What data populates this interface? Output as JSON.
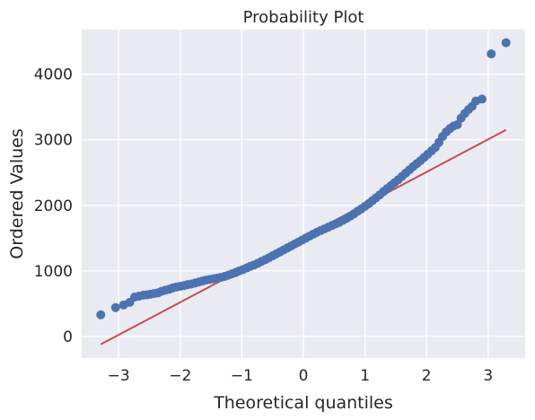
{
  "chart_data": {
    "type": "scatter",
    "title": "Probability Plot",
    "xlabel": "Theoretical quantiles",
    "ylabel": "Ordered Values",
    "xlim": [
      -3.6,
      3.6
    ],
    "ylim": [
      -330,
      4680
    ],
    "xticks": [
      -3,
      -2,
      -1,
      0,
      1,
      2,
      3
    ],
    "xtick_labels": [
      "−3",
      "−2",
      "−1",
      "0",
      "1",
      "2",
      "3"
    ],
    "yticks": [
      0,
      1000,
      2000,
      3000,
      4000
    ],
    "ytick_labels": [
      "0",
      "1000",
      "2000",
      "3000",
      "4000"
    ],
    "grid": true,
    "legend": "none",
    "series": [
      {
        "kind": "points",
        "color": "#4c72b0",
        "points": [
          [
            -3.29,
            330
          ],
          [
            -3.05,
            440
          ],
          [
            -2.92,
            480
          ],
          [
            -2.82,
            520
          ],
          [
            -2.74,
            600
          ],
          [
            -2.67,
            615
          ],
          [
            -2.6,
            630
          ],
          [
            -2.54,
            635
          ],
          [
            -2.48,
            645
          ],
          [
            -2.42,
            655
          ],
          [
            -2.36,
            665
          ],
          [
            -2.3,
            690
          ],
          [
            -2.24,
            705
          ],
          [
            -2.18,
            720
          ],
          [
            -2.12,
            740
          ],
          [
            -2.06,
            755
          ],
          [
            -2.0,
            765
          ],
          [
            -1.94,
            775
          ],
          [
            -1.88,
            790
          ],
          [
            -1.82,
            800
          ],
          [
            -1.76,
            815
          ],
          [
            -1.7,
            830
          ],
          [
            -1.64,
            845
          ],
          [
            -1.58,
            860
          ],
          [
            -1.52,
            870
          ],
          [
            -1.46,
            880
          ],
          [
            -1.4,
            890
          ],
          [
            -1.34,
            900
          ],
          [
            -1.28,
            915
          ],
          [
            -1.22,
            935
          ],
          [
            -1.16,
            955
          ],
          [
            -1.1,
            975
          ],
          [
            -1.04,
            1000
          ],
          [
            -0.98,
            1020
          ],
          [
            -0.92,
            1045
          ],
          [
            -0.86,
            1070
          ],
          [
            -0.8,
            1090
          ],
          [
            -0.74,
            1115
          ],
          [
            -0.68,
            1145
          ],
          [
            -0.62,
            1170
          ],
          [
            -0.56,
            1200
          ],
          [
            -0.5,
            1230
          ],
          [
            -0.44,
            1260
          ],
          [
            -0.38,
            1290
          ],
          [
            -0.32,
            1320
          ],
          [
            -0.26,
            1350
          ],
          [
            -0.2,
            1380
          ],
          [
            -0.14,
            1410
          ],
          [
            -0.08,
            1440
          ],
          [
            -0.02,
            1470
          ],
          [
            0.04,
            1500
          ],
          [
            0.1,
            1530
          ],
          [
            0.16,
            1560
          ],
          [
            0.22,
            1590
          ],
          [
            0.28,
            1615
          ],
          [
            0.34,
            1640
          ],
          [
            0.4,
            1665
          ],
          [
            0.46,
            1690
          ],
          [
            0.52,
            1715
          ],
          [
            0.58,
            1740
          ],
          [
            0.64,
            1770
          ],
          [
            0.7,
            1800
          ],
          [
            0.76,
            1835
          ],
          [
            0.82,
            1870
          ],
          [
            0.88,
            1910
          ],
          [
            0.94,
            1945
          ],
          [
            1.0,
            1985
          ],
          [
            1.06,
            2025
          ],
          [
            1.12,
            2070
          ],
          [
            1.18,
            2115
          ],
          [
            1.24,
            2160
          ],
          [
            1.3,
            2210
          ],
          [
            1.36,
            2255
          ],
          [
            1.42,
            2300
          ],
          [
            1.48,
            2345
          ],
          [
            1.54,
            2390
          ],
          [
            1.6,
            2440
          ],
          [
            1.66,
            2490
          ],
          [
            1.72,
            2540
          ],
          [
            1.78,
            2590
          ],
          [
            1.84,
            2635
          ],
          [
            1.9,
            2680
          ],
          [
            1.96,
            2730
          ],
          [
            2.02,
            2780
          ],
          [
            2.08,
            2830
          ],
          [
            2.14,
            2880
          ],
          [
            2.2,
            2960
          ],
          [
            2.26,
            3050
          ],
          [
            2.32,
            3120
          ],
          [
            2.38,
            3170
          ],
          [
            2.44,
            3210
          ],
          [
            2.5,
            3230
          ],
          [
            2.56,
            3330
          ],
          [
            2.62,
            3400
          ],
          [
            2.68,
            3460
          ],
          [
            2.74,
            3510
          ],
          [
            2.8,
            3590
          ],
          [
            2.9,
            3620
          ],
          [
            3.05,
            4310
          ],
          [
            3.29,
            4480
          ]
        ]
      },
      {
        "kind": "fit-line",
        "color": "#c44e52",
        "x": [
          -3.29,
          3.29
        ],
        "y": [
          -120,
          3150
        ]
      }
    ]
  }
}
